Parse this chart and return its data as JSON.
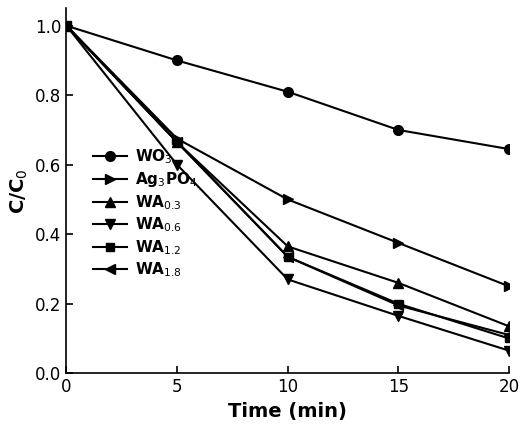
{
  "x": [
    0,
    5,
    10,
    15,
    20
  ],
  "series": [
    {
      "label": "WO$_3$",
      "values": [
        1.0,
        0.9,
        0.81,
        0.7,
        0.645
      ],
      "marker": "o",
      "marker_size": 7
    },
    {
      "label": "Ag$_3$PO$_4$",
      "values": [
        1.0,
        0.675,
        0.5,
        0.375,
        0.25
      ],
      "marker": ">",
      "marker_size": 7
    },
    {
      "label": "WA$_{0.3}$",
      "values": [
        1.0,
        0.665,
        0.365,
        0.26,
        0.135
      ],
      "marker": "^",
      "marker_size": 7
    },
    {
      "label": "WA$_{0.6}$",
      "values": [
        1.0,
        0.6,
        0.27,
        0.165,
        0.065
      ],
      "marker": "v",
      "marker_size": 7
    },
    {
      "label": "WA$_{1.2}$",
      "values": [
        1.0,
        0.665,
        0.335,
        0.2,
        0.1
      ],
      "marker": "s",
      "marker_size": 6
    },
    {
      "label": "WA$_{1.8}$",
      "values": [
        1.0,
        0.665,
        0.335,
        0.195,
        0.11
      ],
      "marker": "<",
      "marker_size": 7
    }
  ],
  "xlabel": "Time (min)",
  "ylabel": "C/C$_0$",
  "xlim": [
    0,
    20
  ],
  "ylim": [
    0.0,
    1.05
  ],
  "xticks": [
    0,
    5,
    10,
    15,
    20
  ],
  "yticks": [
    0.0,
    0.2,
    0.4,
    0.6,
    0.8,
    1.0
  ],
  "line_color": "#000000",
  "linewidth": 1.5,
  "legend_fontsize": 11,
  "axis_fontsize": 14,
  "tick_fontsize": 12,
  "figure_width": 5.28,
  "figure_height": 4.29,
  "dpi": 100
}
